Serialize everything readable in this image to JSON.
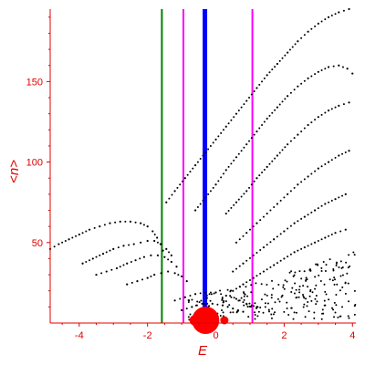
{
  "chart_data": {
    "type": "scatter",
    "title": "",
    "xlabel": "E",
    "ylabel": "<n>",
    "xlim": [
      -4.85,
      4.1
    ],
    "ylim": [
      0,
      195
    ],
    "x_ticks": [
      -4,
      -2,
      0,
      2,
      4
    ],
    "y_ticks": [
      50,
      100,
      150
    ],
    "grid": false,
    "axis_color": "#e00000",
    "point_color": "#000000",
    "vertical_lines": [
      {
        "x": -1.58,
        "color": "#008000",
        "width": 2
      },
      {
        "x": -0.95,
        "color": "#ff00ff",
        "width": 2
      },
      {
        "x": -0.32,
        "color": "#0000ff",
        "width": 5
      },
      {
        "x": 1.07,
        "color": "#ff00ff",
        "width": 2
      }
    ],
    "red_blobs": [
      {
        "x": -0.3,
        "y": 4,
        "r": 0.4
      },
      {
        "x": -0.62,
        "y": 2,
        "r": 0.15
      },
      {
        "x": 0.25,
        "y": 2,
        "r": 0.12
      }
    ],
    "series": [
      {
        "points": [
          [
            -4.85,
            46
          ],
          [
            -4.6,
            49
          ],
          [
            -4.3,
            52
          ],
          [
            -4.0,
            55
          ],
          [
            -3.7,
            58
          ],
          [
            -3.4,
            60
          ],
          [
            -3.1,
            62
          ],
          [
            -2.8,
            63
          ],
          [
            -2.5,
            63
          ],
          [
            -2.2,
            62
          ],
          [
            -2.0,
            60
          ],
          [
            -1.85,
            57
          ],
          [
            -1.72,
            53
          ],
          [
            -1.62,
            49
          ],
          [
            -1.55,
            45
          ]
        ]
      },
      {
        "points": [
          [
            -3.9,
            37
          ],
          [
            -3.6,
            40
          ],
          [
            -3.3,
            43
          ],
          [
            -3.0,
            46
          ],
          [
            -2.7,
            48
          ],
          [
            -2.4,
            49
          ],
          [
            -2.2,
            50
          ],
          [
            -2.0,
            51
          ],
          [
            -1.8,
            51
          ],
          [
            -1.6,
            49
          ],
          [
            -1.45,
            46
          ],
          [
            -1.3,
            42
          ]
        ]
      },
      {
        "points": [
          [
            -3.5,
            30
          ],
          [
            -3.2,
            32
          ],
          [
            -2.9,
            34
          ],
          [
            -2.6,
            37
          ],
          [
            -2.35,
            39
          ],
          [
            -2.1,
            41
          ],
          [
            -1.9,
            42
          ],
          [
            -1.7,
            42
          ],
          [
            -1.5,
            41
          ],
          [
            -1.3,
            38
          ],
          [
            -1.15,
            35
          ]
        ]
      },
      {
        "points": [
          [
            -2.6,
            24
          ],
          [
            -2.3,
            26
          ],
          [
            -2.0,
            28
          ],
          [
            -1.8,
            30
          ],
          [
            -1.6,
            31
          ],
          [
            -1.4,
            32
          ],
          [
            -1.2,
            31
          ],
          [
            -1.0,
            29
          ],
          [
            -0.85,
            26
          ]
        ]
      },
      {
        "points": [
          [
            -1.45,
            75
          ],
          [
            -1.2,
            82
          ],
          [
            -0.9,
            90
          ],
          [
            -0.6,
            98
          ],
          [
            -0.3,
            106
          ],
          [
            0.0,
            114
          ],
          [
            0.3,
            122
          ],
          [
            0.6,
            130
          ],
          [
            0.9,
            138
          ],
          [
            1.2,
            146
          ],
          [
            1.5,
            154
          ],
          [
            1.8,
            161
          ],
          [
            2.1,
            168
          ],
          [
            2.4,
            175
          ],
          [
            2.7,
            181
          ],
          [
            3.0,
            186
          ],
          [
            3.3,
            190
          ],
          [
            3.6,
            193
          ],
          [
            3.9,
            195
          ]
        ]
      },
      {
        "points": [
          [
            -0.6,
            70
          ],
          [
            -0.3,
            78
          ],
          [
            0.0,
            86
          ],
          [
            0.3,
            95
          ],
          [
            0.6,
            103
          ],
          [
            0.9,
            111
          ],
          [
            1.2,
            119
          ],
          [
            1.5,
            127
          ],
          [
            1.8,
            134
          ],
          [
            2.1,
            141
          ],
          [
            2.4,
            147
          ],
          [
            2.7,
            152
          ],
          [
            3.0,
            156
          ],
          [
            3.3,
            159
          ],
          [
            3.6,
            160
          ],
          [
            3.85,
            158
          ],
          [
            4.0,
            155
          ]
        ]
      },
      {
        "points": [
          [
            0.3,
            68
          ],
          [
            0.6,
            75
          ],
          [
            0.9,
            82
          ],
          [
            1.2,
            90
          ],
          [
            1.5,
            97
          ],
          [
            1.8,
            104
          ],
          [
            2.1,
            111
          ],
          [
            2.4,
            117
          ],
          [
            2.7,
            123
          ],
          [
            3.0,
            128
          ],
          [
            3.3,
            132
          ],
          [
            3.6,
            135
          ],
          [
            3.9,
            137
          ]
        ]
      },
      {
        "points": [
          [
            0.6,
            50
          ],
          [
            0.9,
            56
          ],
          [
            1.2,
            62
          ],
          [
            1.5,
            68
          ],
          [
            1.8,
            74
          ],
          [
            2.1,
            80
          ],
          [
            2.4,
            86
          ],
          [
            2.7,
            91
          ],
          [
            3.0,
            96
          ],
          [
            3.3,
            100
          ],
          [
            3.6,
            104
          ],
          [
            3.9,
            107
          ]
        ]
      },
      {
        "points": [
          [
            0.5,
            32
          ],
          [
            0.8,
            37
          ],
          [
            1.1,
            42
          ],
          [
            1.4,
            47
          ],
          [
            1.7,
            52
          ],
          [
            2.0,
            57
          ],
          [
            2.3,
            62
          ],
          [
            2.6,
            66
          ],
          [
            2.9,
            70
          ],
          [
            3.2,
            74
          ],
          [
            3.5,
            77
          ],
          [
            3.8,
            80
          ]
        ]
      },
      {
        "points": [
          [
            0.5,
            20
          ],
          [
            0.8,
            24
          ],
          [
            1.1,
            28
          ],
          [
            1.4,
            32
          ],
          [
            1.7,
            36
          ],
          [
            2.0,
            40
          ],
          [
            2.3,
            44
          ],
          [
            2.6,
            47
          ],
          [
            2.9,
            50
          ],
          [
            3.2,
            53
          ],
          [
            3.5,
            56
          ],
          [
            3.8,
            58
          ]
        ]
      },
      {
        "points": [
          [
            -1.2,
            14
          ],
          [
            -0.9,
            16
          ],
          [
            -0.6,
            18
          ],
          [
            -0.3,
            19
          ],
          [
            0.0,
            19
          ],
          [
            0.3,
            17
          ],
          [
            0.6,
            15
          ],
          [
            0.9,
            12
          ],
          [
            1.2,
            10
          ]
        ]
      },
      {
        "points": [
          [
            -1.0,
            8
          ],
          [
            -0.7,
            10
          ],
          [
            -0.4,
            12
          ],
          [
            -0.1,
            12
          ],
          [
            0.2,
            11
          ],
          [
            0.5,
            9
          ],
          [
            0.8,
            7
          ]
        ]
      }
    ]
  }
}
